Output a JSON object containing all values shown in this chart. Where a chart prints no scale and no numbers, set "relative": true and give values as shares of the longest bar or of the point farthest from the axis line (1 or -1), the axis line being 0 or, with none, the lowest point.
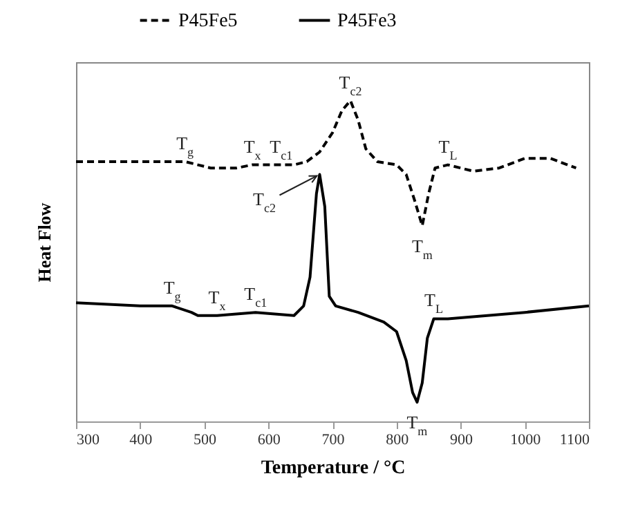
{
  "chart_data": {
    "type": "line",
    "relative": true,
    "xlabel": "Temperature  / °C",
    "ylabel": "Heat Flow",
    "legend": "top",
    "grid": false,
    "xlim": [
      300,
      1100
    ],
    "xticks": [
      300,
      400,
      500,
      600,
      700,
      800,
      900,
      1000,
      1100
    ],
    "series": [
      {
        "name": "P45Fe5",
        "color": "#000000",
        "line_style": "dashed",
        "x": [
          300,
          470,
          490,
          510,
          550,
          575,
          600,
          620,
          640,
          660,
          680,
          700,
          715,
          728,
          740,
          752,
          770,
          800,
          815,
          828,
          840,
          850,
          860,
          880,
          900,
          920,
          960,
          1000,
          1040,
          1080
        ],
        "values": [
          0.81,
          0.81,
          0.8,
          0.79,
          0.79,
          0.8,
          0.8,
          0.8,
          0.8,
          0.81,
          0.84,
          0.9,
          0.97,
          1.0,
          0.94,
          0.85,
          0.81,
          0.8,
          0.77,
          0.69,
          0.61,
          0.71,
          0.79,
          0.8,
          0.79,
          0.78,
          0.79,
          0.82,
          0.82,
          0.79
        ]
      },
      {
        "name": "P45Fe3",
        "color": "#000000",
        "line_style": "solid",
        "x": [
          300,
          400,
          450,
          480,
          490,
          520,
          580,
          640,
          655,
          665,
          675,
          680,
          688,
          695,
          705,
          740,
          780,
          800,
          815,
          825,
          832,
          840,
          848,
          858,
          880,
          1000,
          1100
        ],
        "values": [
          0.37,
          0.36,
          0.36,
          0.34,
          0.33,
          0.33,
          0.34,
          0.33,
          0.36,
          0.45,
          0.71,
          0.77,
          0.67,
          0.39,
          0.36,
          0.34,
          0.31,
          0.28,
          0.19,
          0.09,
          0.06,
          0.12,
          0.26,
          0.32,
          0.32,
          0.34,
          0.36
        ]
      }
    ],
    "annotations": [
      {
        "text": "T$_{g}$",
        "x": 470,
        "y": 0.81
      },
      {
        "text": "T$_{x}$",
        "x": 575,
        "y": 0.8
      },
      {
        "text": "T$_{c1}$",
        "x": 620,
        "y": 0.8
      },
      {
        "text": "T$_{c2}$",
        "x": 728,
        "y": 1.0
      },
      {
        "text": "T$_{L}$",
        "x": 880,
        "y": 0.8
      },
      {
        "text": "T$_{m}$",
        "x": 840,
        "y": 0.61
      },
      {
        "text": "T$_{c2}$",
        "x": 680,
        "y": 0.77
      },
      {
        "text": "T$_{g}$",
        "x": 450,
        "y": 0.36
      },
      {
        "text": "T$_{x}$",
        "x": 520,
        "y": 0.33
      },
      {
        "text": "T$_{c1}$",
        "x": 580,
        "y": 0.34
      },
      {
        "text": "T$_{L}$",
        "x": 858,
        "y": 0.32
      },
      {
        "text": "T$_{m}$",
        "x": 832,
        "y": 0.06
      }
    ]
  }
}
